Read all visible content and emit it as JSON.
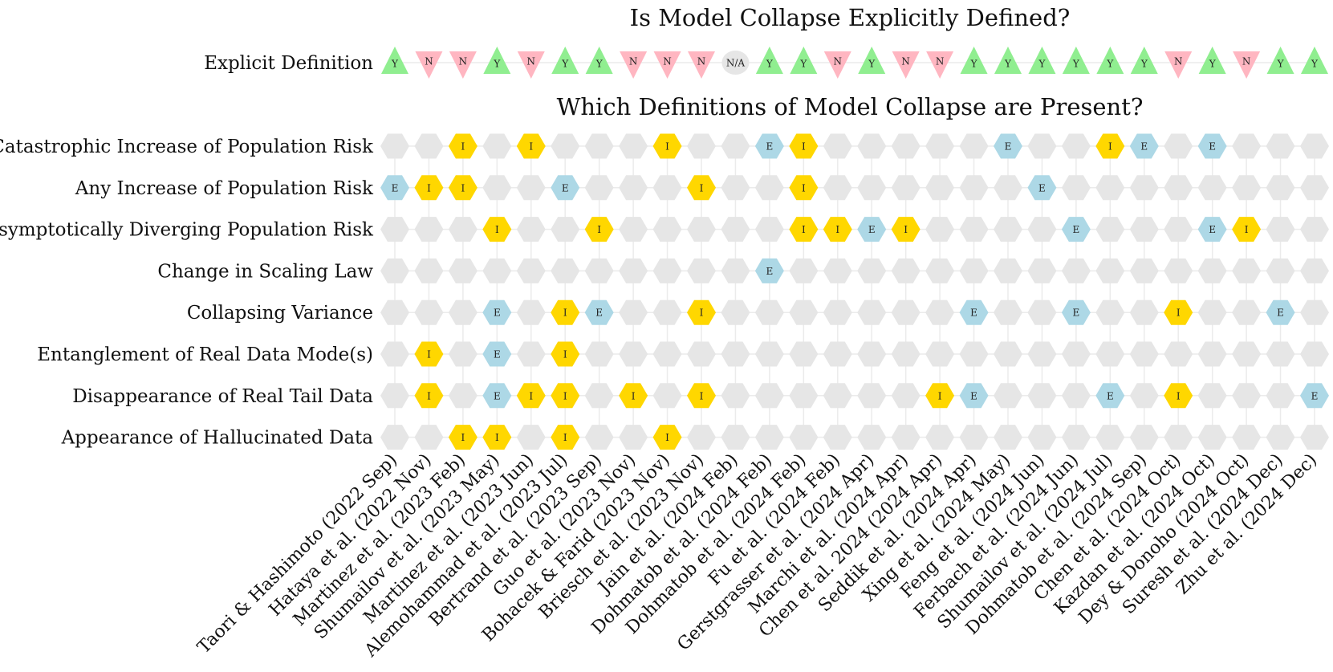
{
  "chart_data": [
    {
      "type": "table",
      "title": "Is Model Collapse Explicitly Defined?",
      "row": "Explicit Definition",
      "values": [
        "Y",
        "N",
        "N",
        "Y",
        "N",
        "Y",
        "Y",
        "N",
        "N",
        "N",
        "N/A",
        "Y",
        "Y",
        "N",
        "Y",
        "N",
        "N",
        "Y",
        "Y",
        "Y",
        "Y",
        "Y",
        "Y",
        "N",
        "Y",
        "N",
        "Y",
        "Y"
      ]
    },
    {
      "type": "table",
      "title": "Which Definitions of Model Collapse are Present?",
      "rows": [
        "Catastrophic Increase of Population Risk",
        "Any Increase of Population Risk",
        "Asymptotically Diverging Population Risk",
        "Change in Scaling Law",
        "Collapsing Variance",
        "Entanglement of Real Data Mode(s)",
        "Disappearance of Real Tail Data",
        "Appearance of Hallucinated Data"
      ],
      "columns": [
        "Taori & Hashimoto (2022 Sep)",
        "Hataya et al. (2022 Nov)",
        "Martinez et al. (2023 Feb)",
        "Shumailov et al. (2023 May)",
        "Martinez et al. (2023 Jun)",
        "Alemohammad et al. (2023 Jul)",
        "Bertrand et al. (2023 Sep)",
        "Guo et al. (2023 Nov)",
        "Bohacek & Farid (2023 Nov)",
        "Briesch et al. (2023 Nov)",
        "Jain et al. (2024 Feb)",
        "Dohmatob et al. (2024 Feb)",
        "Dohmatob et al. (2024 Feb)",
        "Fu et al. (2024 Feb)",
        "Gerstgrasser et al. (2024 Apr)",
        "Marchi et al. (2024 Apr)",
        "Chen et al. 2024 (2024 Apr)",
        "Seddik et al. (2024 Apr)",
        "Xing et al. (2024 May)",
        "Feng et al. (2024 Jun)",
        "Ferbach et al. (2024 Jun)",
        "Shumailov et al. (2024 Jul)",
        "Dohmatob et al. (2024 Sep)",
        "Chen et al. (2024 Oct)",
        "Kazdan et al. (2024 Oct)",
        "Dey & Donoho (2024 Oct)",
        "Suresh et al. (2024 Dec)",
        "Zhu et al. (2024 Dec)"
      ],
      "cells": [
        [
          "",
          "",
          "I",
          "",
          "I",
          "",
          "",
          "",
          "I",
          "",
          "",
          "E",
          "I",
          "",
          "",
          "",
          "",
          "",
          "E",
          "",
          "",
          "I",
          "E",
          "",
          "E",
          "",
          "",
          ""
        ],
        [
          "E",
          "I",
          "I",
          "",
          "",
          "E",
          "",
          "",
          "",
          "I",
          "",
          "",
          "I",
          "",
          "",
          "",
          "",
          "",
          "",
          "E",
          "",
          "",
          "",
          "",
          "",
          "",
          "",
          ""
        ],
        [
          "",
          "",
          "",
          "I",
          "",
          "",
          "I",
          "",
          "",
          "",
          "",
          "",
          "I",
          "I",
          "E",
          "I",
          "",
          "",
          "",
          "",
          "E",
          "",
          "",
          "",
          "E",
          "I",
          "",
          ""
        ],
        [
          "",
          "",
          "",
          "",
          "",
          "",
          "",
          "",
          "",
          "",
          "",
          "E",
          "",
          "",
          "",
          "",
          "",
          "",
          "",
          "",
          "",
          "",
          "",
          "",
          "",
          "",
          "",
          ""
        ],
        [
          "",
          "",
          "",
          "E",
          "",
          "I",
          "E",
          "",
          "",
          "I",
          "",
          "",
          "",
          "",
          "",
          "",
          "",
          "E",
          "",
          "",
          "E",
          "",
          "",
          "I",
          "",
          "",
          "E",
          ""
        ],
        [
          "",
          "I",
          "",
          "E",
          "",
          "I",
          "",
          "",
          "",
          "",
          "",
          "",
          "",
          "",
          "",
          "",
          "",
          "",
          "",
          "",
          "",
          "",
          "",
          "",
          "",
          "",
          "",
          ""
        ],
        [
          "",
          "I",
          "",
          "E",
          "I",
          "I",
          "",
          "I",
          "",
          "I",
          "",
          "",
          "",
          "",
          "",
          "",
          "I",
          "E",
          "",
          "",
          "",
          "E",
          "",
          "I",
          "",
          "",
          "",
          "E"
        ],
        [
          "",
          "",
          "I",
          "I",
          "",
          "I",
          "",
          "",
          "I",
          "",
          "",
          "",
          "",
          "",
          "",
          "",
          "",
          "",
          "",
          "",
          "",
          "",
          "",
          "",
          "",
          "",
          "",
          ""
        ]
      ]
    }
  ],
  "colors": {
    "yes": "#90ee90",
    "no": "#ffb6c1",
    "na": "#e6e6e6",
    "explicit": "#add8e6",
    "implicit": "#ffd700",
    "absent": "#e6e6e6",
    "grid": "#ebebeb"
  }
}
